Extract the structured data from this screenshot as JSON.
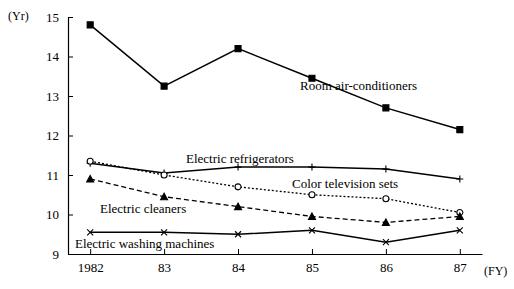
{
  "chart_data": {
    "type": "line",
    "x_label": "(FY)",
    "y_label": "(Yr)",
    "categories": [
      "1982",
      "83",
      "84",
      "85",
      "86",
      "87"
    ],
    "series": [
      {
        "name": "Room air-conditioners",
        "color": "#000000",
        "marker": "square",
        "line_style": "solid",
        "values": [
          14.8,
          13.25,
          14.2,
          13.45,
          12.7,
          12.15
        ]
      },
      {
        "name": "Electric refrigerators",
        "color": "#000000",
        "marker": "plus",
        "line_style": "solid",
        "values": [
          11.3,
          11.05,
          11.2,
          11.2,
          11.15,
          10.9
        ]
      },
      {
        "name": "Color television sets",
        "color": "#000000",
        "marker": "circle",
        "line_style": "dotted",
        "values": [
          11.35,
          11.0,
          10.7,
          10.5,
          10.4,
          10.05
        ]
      },
      {
        "name": "Electric cleaners",
        "color": "#000000",
        "marker": "triangle",
        "line_style": "dashed",
        "values": [
          10.9,
          10.45,
          10.2,
          9.95,
          9.8,
          9.95
        ]
      },
      {
        "name": "Electric washing machines",
        "color": "#000000",
        "marker": "x",
        "line_style": "solid",
        "values": [
          9.55,
          9.55,
          9.5,
          9.6,
          9.3,
          9.6
        ]
      }
    ],
    "ylim": [
      9,
      15
    ],
    "yticks": [
      9,
      10,
      11,
      12,
      13,
      14,
      15
    ],
    "grid": false
  }
}
